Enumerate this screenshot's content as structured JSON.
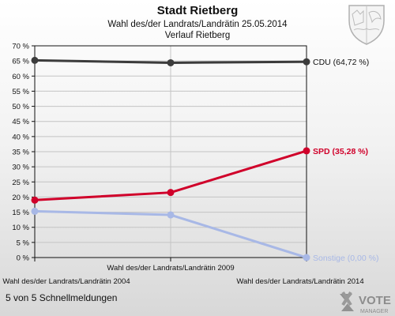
{
  "header": {
    "title": "Stadt Rietberg",
    "subtitle": "Wahl des/der Landrats/Landrätin 25.05.2014",
    "subtitle2": "Verlauf Rietberg"
  },
  "footer": {
    "status": "5 von 5 Schnellmeldungen",
    "logo_text": "VOTE",
    "logo_sub": "MANAGER"
  },
  "chart_data": {
    "type": "line",
    "x_labels_bottom": [
      "Wahl des/der Landrats/Landrätin 2004",
      "Wahl des/der Landrats/Landrätin 2014"
    ],
    "x_labels_top": [
      "Wahl des/der Landrats/Landrätin 2009"
    ],
    "categories": [
      "Wahl des/der Landrats/Landrätin 2004",
      "Wahl des/der Landrats/Landrätin 2009",
      "Wahl des/der Landrats/Landrätin 2014"
    ],
    "y_ticks": [
      "0 %",
      "5 %",
      "10 %",
      "15 %",
      "20 %",
      "25 %",
      "30 %",
      "35 %",
      "40 %",
      "45 %",
      "50 %",
      "55 %",
      "60 %",
      "65 %",
      "70 %"
    ],
    "ylim": [
      0,
      70
    ],
    "y_step": 5,
    "series": [
      {
        "name": "CDU",
        "label": "CDU (64,72 %)",
        "color": "#3c3c3c",
        "values": [
          65.2,
          64.4,
          64.72
        ]
      },
      {
        "name": "SPD",
        "label": "SPD (35,28 %)",
        "color": "#d0002a",
        "values": [
          19.0,
          21.5,
          35.28
        ]
      },
      {
        "name": "Sonstige",
        "label": "Sonstige (0,00 %)",
        "color": "#a8b8e6",
        "values": [
          15.3,
          14.1,
          0.0
        ]
      }
    ]
  }
}
